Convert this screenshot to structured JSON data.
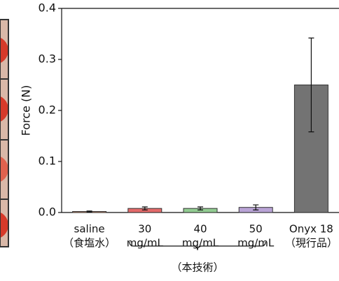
{
  "chart_data": {
    "type": "bar",
    "y_label": "Force (N)",
    "categories": [
      [
        "saline",
        "（食塩水）"
      ],
      [
        "30",
        "mg/mL"
      ],
      [
        "40",
        "mg/mL"
      ],
      [
        "50",
        "mg/mL"
      ],
      [
        "Onyx 18",
        "（現行品）"
      ]
    ],
    "values": [
      0.002,
      0.008,
      0.008,
      0.01,
      0.25
    ],
    "errors": [
      0.001,
      0.003,
      0.003,
      0.005,
      0.092
    ],
    "colors": [
      "#f2a27a",
      "#e46a6a",
      "#92cc92",
      "#b9a3d6",
      "#737373"
    ],
    "ylim": [
      0,
      0.4
    ],
    "yticks": [
      {
        "value": 0,
        "label": "0.0"
      },
      0.1,
      0.2,
      0.3,
      0.4
    ],
    "bracket_label": "（本技術）"
  }
}
